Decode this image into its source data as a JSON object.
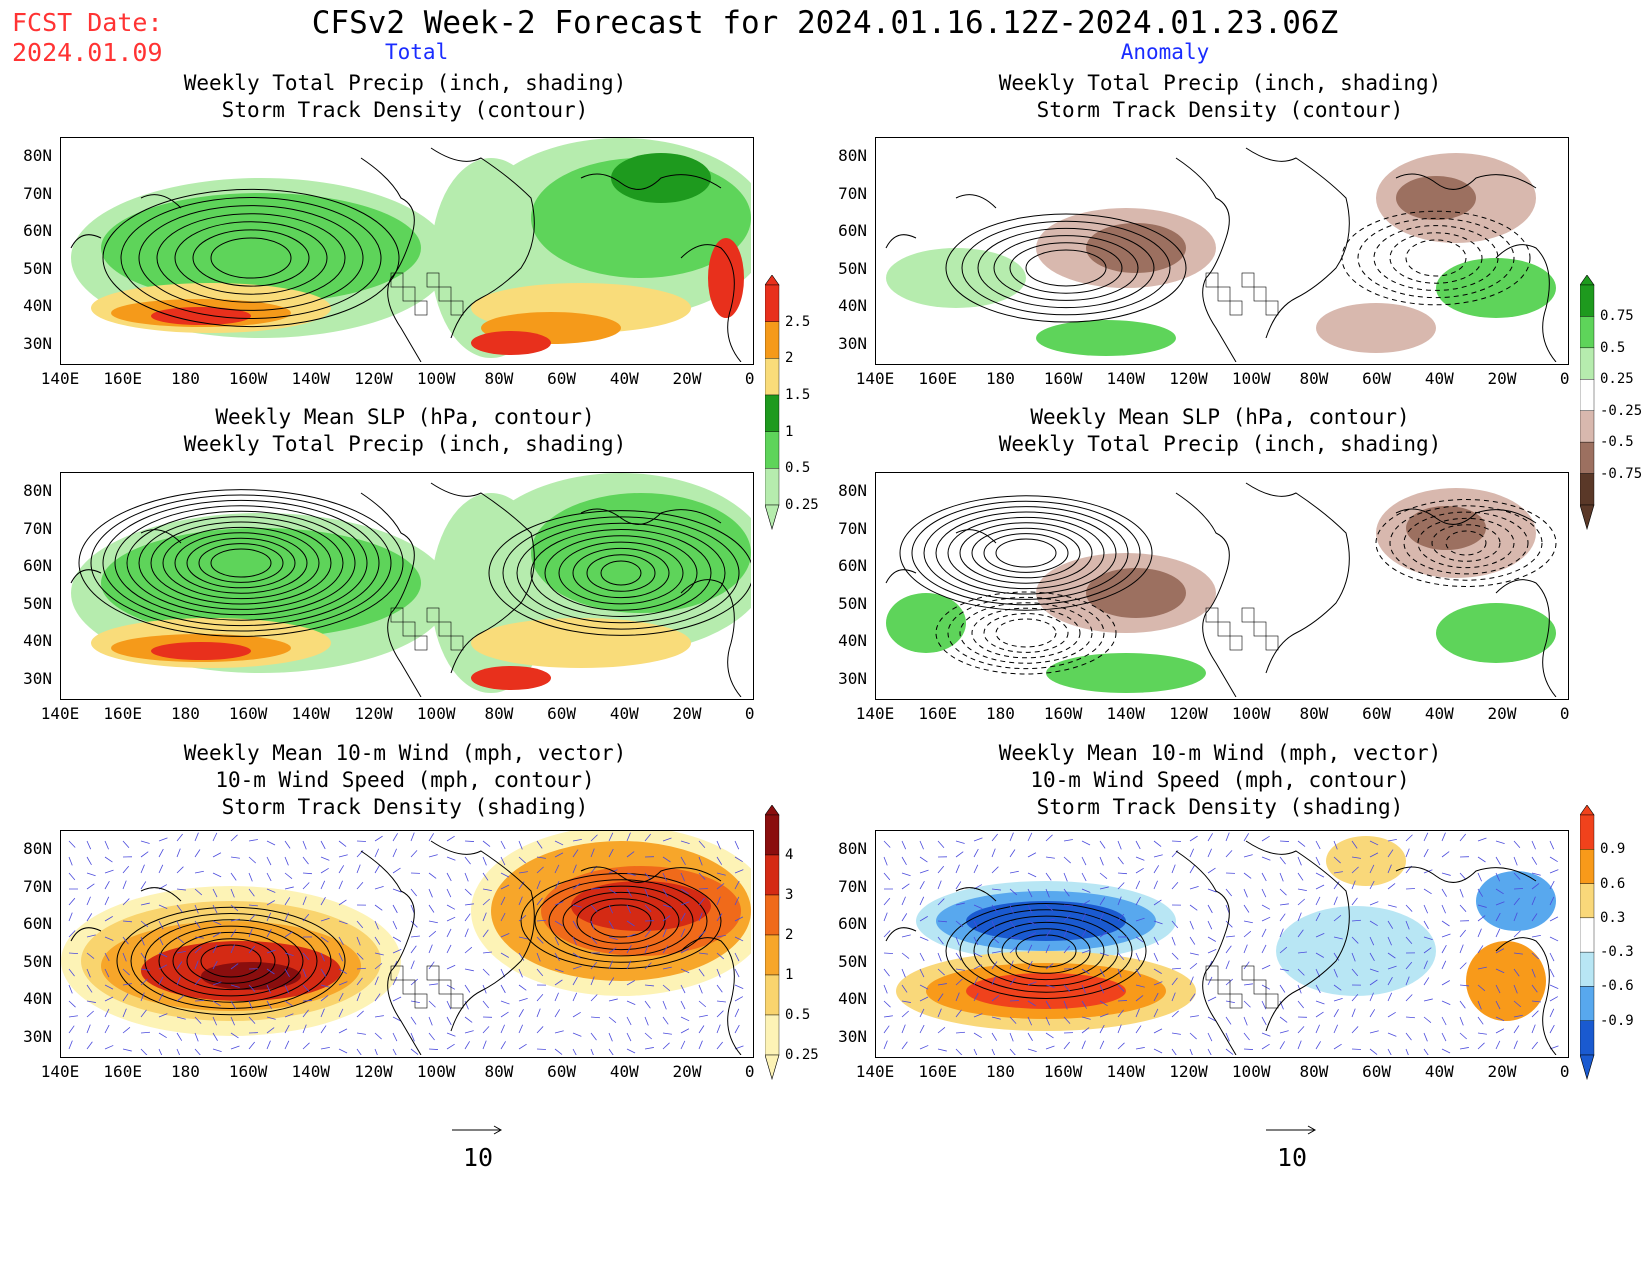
{
  "header": {
    "fcst_label": "FCST Date:",
    "fcst_date": "2024.01.09",
    "title": "CFSv2 Week-2 Forecast for 2024.01.16.12Z-2024.01.23.06Z"
  },
  "columns": {
    "left": "Total",
    "right": "Anomaly"
  },
  "panels": {
    "total_precip": [
      "Weekly Total Precip (inch, shading)",
      "Storm Track Density (contour)"
    ],
    "anom_precip": [
      "Weekly Total Precip (inch, shading)",
      "Storm Track Density (contour)"
    ],
    "total_slp": [
      "Weekly Mean SLP (hPa, contour)",
      "Weekly Total Precip (inch, shading)"
    ],
    "anom_slp": [
      "Weekly Mean SLP (hPa, contour)",
      "Weekly Total Precip (inch, shading)"
    ],
    "total_wind": [
      "Weekly Mean 10-m Wind (mph, vector)",
      "10-m Wind Speed (mph, contour)",
      "Storm Track Density (shading)"
    ],
    "anom_wind": [
      "Weekly Mean 10-m Wind (mph, vector)",
      "10-m Wind Speed (mph, contour)",
      "Storm Track Density (shading)"
    ]
  },
  "axes": {
    "lat_labels": [
      "80N",
      "70N",
      "60N",
      "50N",
      "40N",
      "30N"
    ],
    "lon_labels": [
      "140E",
      "160E",
      "180",
      "160W",
      "140W",
      "120W",
      "100W",
      "80W",
      "60W",
      "40W",
      "20W",
      "0"
    ]
  },
  "colorbars": {
    "total_precip": {
      "labels": [
        "2.5",
        "2",
        "1.5",
        "1",
        "0.5",
        "0.25"
      ],
      "colors": [
        "#e8301c",
        "#f59a1a",
        "#f9dc7a",
        "#1e9a1e",
        "#5ed45a",
        "#b6ecae"
      ]
    },
    "anom_precip": {
      "labels": [
        "0.75",
        "0.5",
        "0.25",
        "-0.25",
        "-0.5",
        "-0.75"
      ],
      "colors": [
        "#1e9a1e",
        "#5ed45a",
        "#b6ecae",
        "#ffffff",
        "#d8b8ae",
        "#9c7060",
        "#5a3828"
      ]
    },
    "total_wind": {
      "labels": [
        "4",
        "3",
        "2",
        "1",
        "0.5",
        "0.25"
      ],
      "colors": [
        "#8a0e0e",
        "#d42a14",
        "#f06a1a",
        "#f7a62a",
        "#f9d46e",
        "#fdf3b6"
      ]
    },
    "anom_wind": {
      "labels": [
        "0.9",
        "0.6",
        "0.3",
        "-0.3",
        "-0.6",
        "-0.9"
      ],
      "colors": [
        "#f0421c",
        "#f89a1a",
        "#f9d87a",
        "#ffffff",
        "#b8e6f4",
        "#58a8ee",
        "#1a5ad0"
      ]
    }
  },
  "vector_ref": {
    "left": "10",
    "right": "10"
  }
}
